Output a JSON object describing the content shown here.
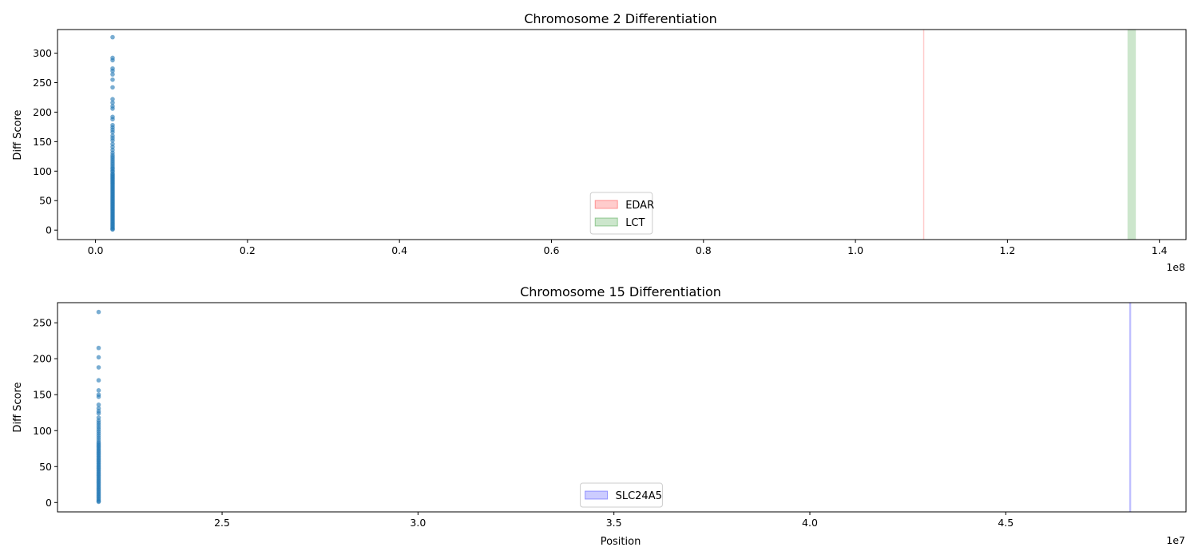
{
  "chart_data": [
    {
      "type": "scatter",
      "title": "Chromosome 2 Differentiation",
      "xlabel": "",
      "ylabel": "Diff Score",
      "xlim": [
        -5000000,
        143500000
      ],
      "ylim": [
        -16,
        340
      ],
      "x_offset_label": "1e8",
      "x_ticks": [
        {
          "value": 0,
          "label": "0.0"
        },
        {
          "value": 20000000,
          "label": "0.2"
        },
        {
          "value": 40000000,
          "label": "0.4"
        },
        {
          "value": 60000000,
          "label": "0.6"
        },
        {
          "value": 80000000,
          "label": "0.8"
        },
        {
          "value": 100000000,
          "label": "1.0"
        },
        {
          "value": 120000000,
          "label": "1.2"
        },
        {
          "value": 140000000,
          "label": "1.4"
        }
      ],
      "y_ticks": [
        {
          "value": 0,
          "label": "0"
        },
        {
          "value": 50,
          "label": "50"
        },
        {
          "value": 100,
          "label": "100"
        },
        {
          "value": 150,
          "label": "150"
        },
        {
          "value": 200,
          "label": "200"
        },
        {
          "value": 250,
          "label": "250"
        },
        {
          "value": 300,
          "label": "300"
        }
      ],
      "point_color": "#1f77b4",
      "points_x": 2250000,
      "points_y": [
        327,
        292,
        288,
        274,
        270,
        264,
        255,
        242,
        222,
        216,
        210,
        206,
        192,
        188,
        178,
        174,
        170,
        166,
        160,
        156,
        152,
        146,
        141,
        136,
        131,
        127,
        124,
        121,
        118,
        115,
        112,
        109,
        106,
        104,
        101,
        99,
        96,
        94,
        92,
        90,
        88,
        86,
        84,
        82,
        80,
        78,
        76,
        74,
        72,
        70,
        68,
        66,
        64,
        62,
        60,
        58,
        56,
        54,
        52,
        50,
        48,
        46,
        44,
        42,
        40,
        38,
        36,
        34,
        32,
        30,
        28,
        26,
        24,
        22,
        20,
        18,
        16,
        14,
        12,
        10,
        8,
        6,
        4,
        2,
        1
      ],
      "regions": [
        {
          "name": "EDAR",
          "start": 108900000,
          "end": 109000000,
          "color": "#ff0000",
          "alpha": 0.2
        },
        {
          "name": "LCT",
          "start": 135800000,
          "end": 136900000,
          "color": "#008000",
          "alpha": 0.2
        }
      ],
      "legend": {
        "placement": "lower-center",
        "entries": [
          {
            "label": "EDAR",
            "color": "#ff0000"
          },
          {
            "label": "LCT",
            "color": "#008000"
          }
        ]
      }
    },
    {
      "type": "scatter",
      "title": "Chromosome 15 Differentiation",
      "xlabel": "Position",
      "ylabel": "Diff Score",
      "xlim": [
        20800000,
        49600000
      ],
      "ylim": [
        -13,
        278
      ],
      "x_offset_label": "1e7",
      "x_ticks": [
        {
          "value": 25000000,
          "label": "2.5"
        },
        {
          "value": 30000000,
          "label": "3.0"
        },
        {
          "value": 35000000,
          "label": "3.5"
        },
        {
          "value": 40000000,
          "label": "4.0"
        },
        {
          "value": 45000000,
          "label": "4.5"
        }
      ],
      "y_ticks": [
        {
          "value": 0,
          "label": "0"
        },
        {
          "value": 50,
          "label": "50"
        },
        {
          "value": 100,
          "label": "100"
        },
        {
          "value": 150,
          "label": "150"
        },
        {
          "value": 200,
          "label": "200"
        },
        {
          "value": 250,
          "label": "250"
        }
      ],
      "point_color": "#1f77b4",
      "points_x": 21850000,
      "points_y": [
        265,
        215,
        202,
        188,
        170,
        156,
        150,
        147,
        136,
        131,
        127,
        124,
        118,
        114,
        111,
        108,
        105,
        102,
        99,
        96,
        93,
        90,
        87,
        84,
        82,
        80,
        78,
        76,
        74,
        72,
        70,
        68,
        66,
        64,
        62,
        60,
        58,
        56,
        54,
        52,
        50,
        48,
        46,
        44,
        42,
        40,
        38,
        36,
        34,
        32,
        30,
        28,
        26,
        24,
        22,
        20,
        18,
        16,
        14,
        12,
        10,
        8,
        6,
        4,
        2,
        1
      ],
      "regions": [
        {
          "name": "SLC24A5",
          "start": 48150000,
          "end": 48200000,
          "color": "#0000ff",
          "alpha": 0.25
        }
      ],
      "legend": {
        "placement": "lower-center",
        "entries": [
          {
            "label": "SLC24A5",
            "color": "#0000ff"
          }
        ]
      }
    }
  ]
}
